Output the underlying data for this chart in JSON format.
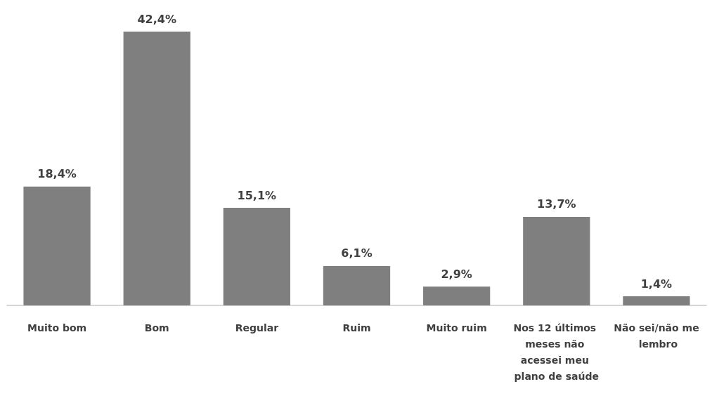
{
  "chart_data": {
    "type": "bar",
    "categories": [
      "Muito bom",
      "Bom",
      "Regular",
      "Ruim",
      "Muito ruim",
      "Nos 12 últimos meses não acessei meu plano de saúde",
      "Não sei/não me lembro"
    ],
    "values": [
      18.4,
      42.4,
      15.1,
      6.1,
      2.9,
      13.7,
      1.4
    ],
    "value_labels": [
      "18,4%",
      "42,4%",
      "15,1%",
      "6,1%",
      "2,9%",
      "13,7%",
      "1,4%"
    ],
    "color": "#7f7f7f"
  }
}
